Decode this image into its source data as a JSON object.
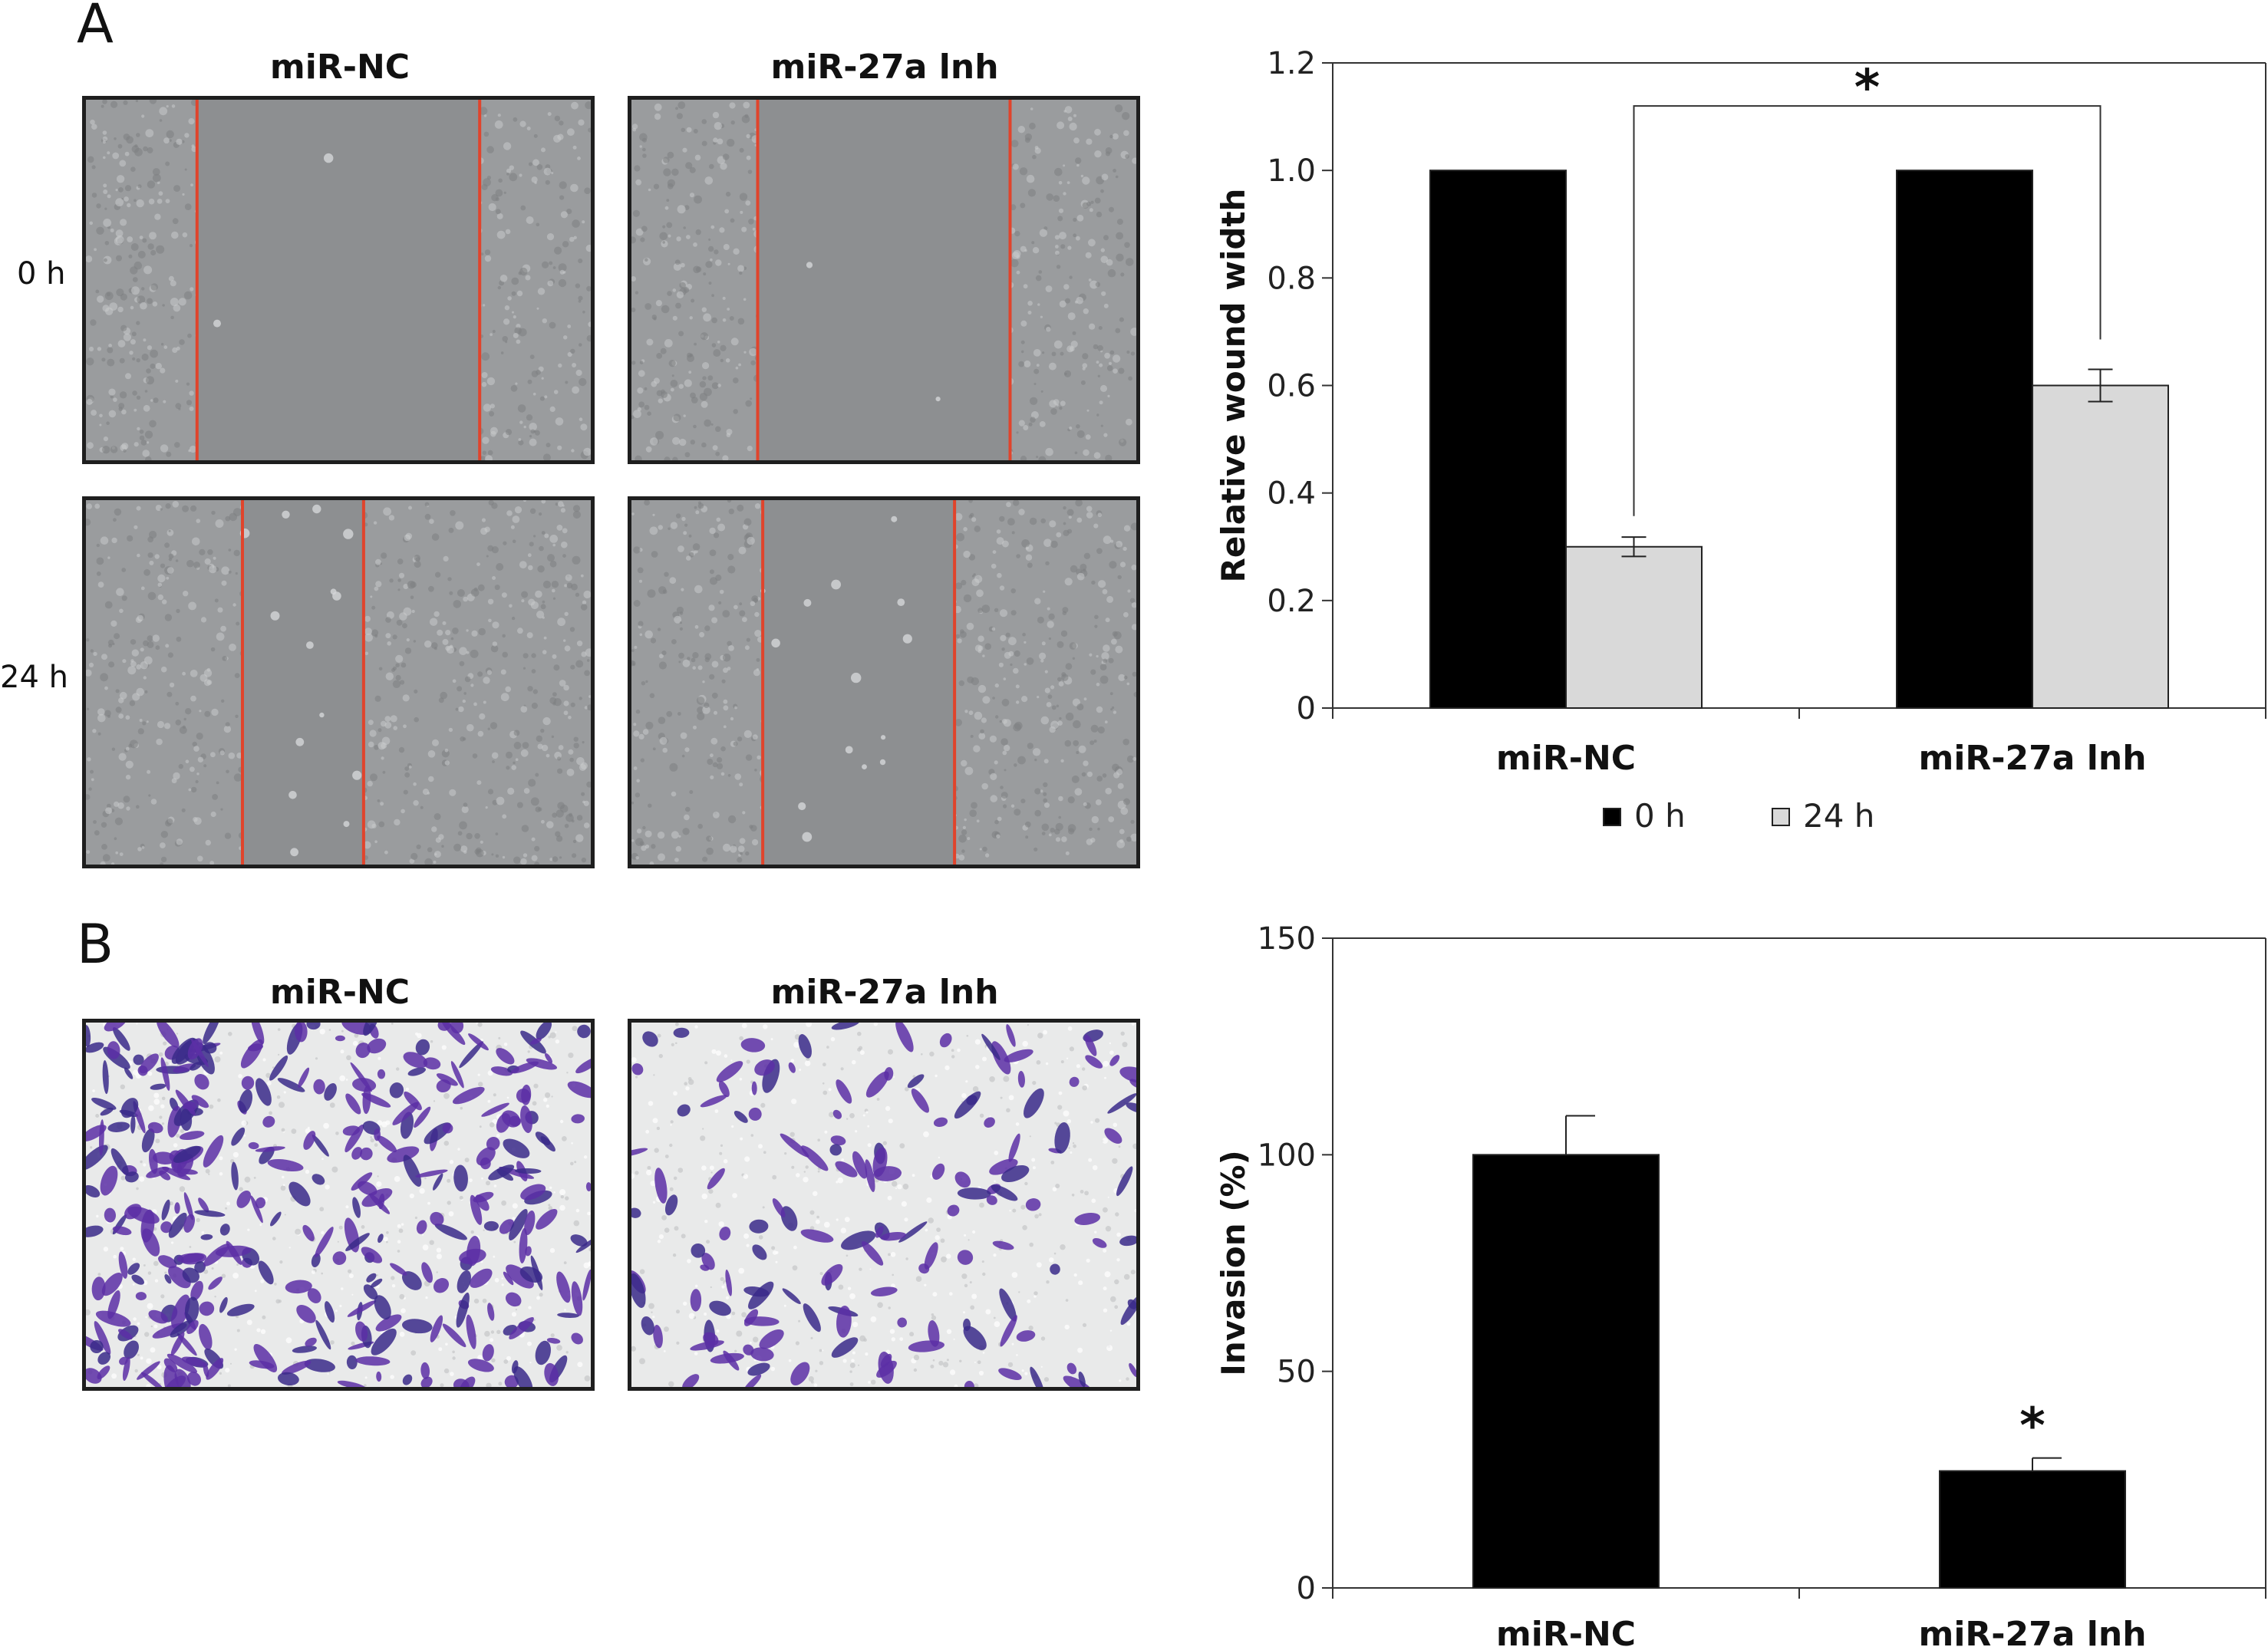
{
  "panel_a": {
    "letter": "A",
    "col_labels": [
      "miR-NC",
      "miR-27a lnh"
    ],
    "row_labels": [
      "0 h",
      "24 h"
    ],
    "wound_images": [
      {
        "condition": "miR-NC",
        "time": "0 h",
        "wound_open_fraction": 0.56
      },
      {
        "condition": "miR-27a lnh",
        "time": "0 h",
        "wound_open_fraction": 0.5
      },
      {
        "condition": "miR-NC",
        "time": "24 h",
        "wound_open_fraction": 0.24
      },
      {
        "condition": "miR-27a lnh",
        "time": "24 h",
        "wound_open_fraction": 0.38
      }
    ]
  },
  "panel_b": {
    "letter": "B",
    "col_labels": [
      "miR-NC",
      "miR-27a lnh"
    ],
    "invasion_images": [
      {
        "condition": "miR-NC",
        "stain_density": 0.85
      },
      {
        "condition": "miR-27a lnh",
        "stain_density": 0.35
      }
    ]
  },
  "colors": {
    "bar_0h": "#000000",
    "bar_24h": "#d9d9d9",
    "wound_line": "#e0442c",
    "stain": "#5c2fa6",
    "wound_bg": "#8d8f91"
  },
  "chart_data": [
    {
      "type": "bar",
      "categories": [
        "miR-NC",
        "miR-27a lnh"
      ],
      "series": [
        {
          "name": "0 h",
          "values": [
            1.0,
            1.0
          ],
          "errors": [
            0,
            0
          ]
        },
        {
          "name": "24 h",
          "values": [
            0.3,
            0.6
          ],
          "errors": [
            0.018,
            0.03
          ]
        }
      ],
      "ylabel": "Relative wound width",
      "ylim": [
        0,
        1.2
      ],
      "yticks": [
        "0",
        "0.2",
        "0.4",
        "0.6",
        "0.8",
        "1.0",
        "1.2"
      ],
      "legend": [
        "0 h",
        "24 h"
      ],
      "legend_position": "bottom",
      "significance": "*"
    },
    {
      "type": "bar",
      "categories": [
        "miR-NC",
        "miR-27a lnh"
      ],
      "values": [
        100,
        27
      ],
      "errors": [
        9,
        3
      ],
      "ylabel": "Invasion (%)",
      "ylim": [
        0,
        150
      ],
      "yticks": [
        "0",
        "50",
        "100",
        "150"
      ],
      "significance": "*"
    }
  ]
}
